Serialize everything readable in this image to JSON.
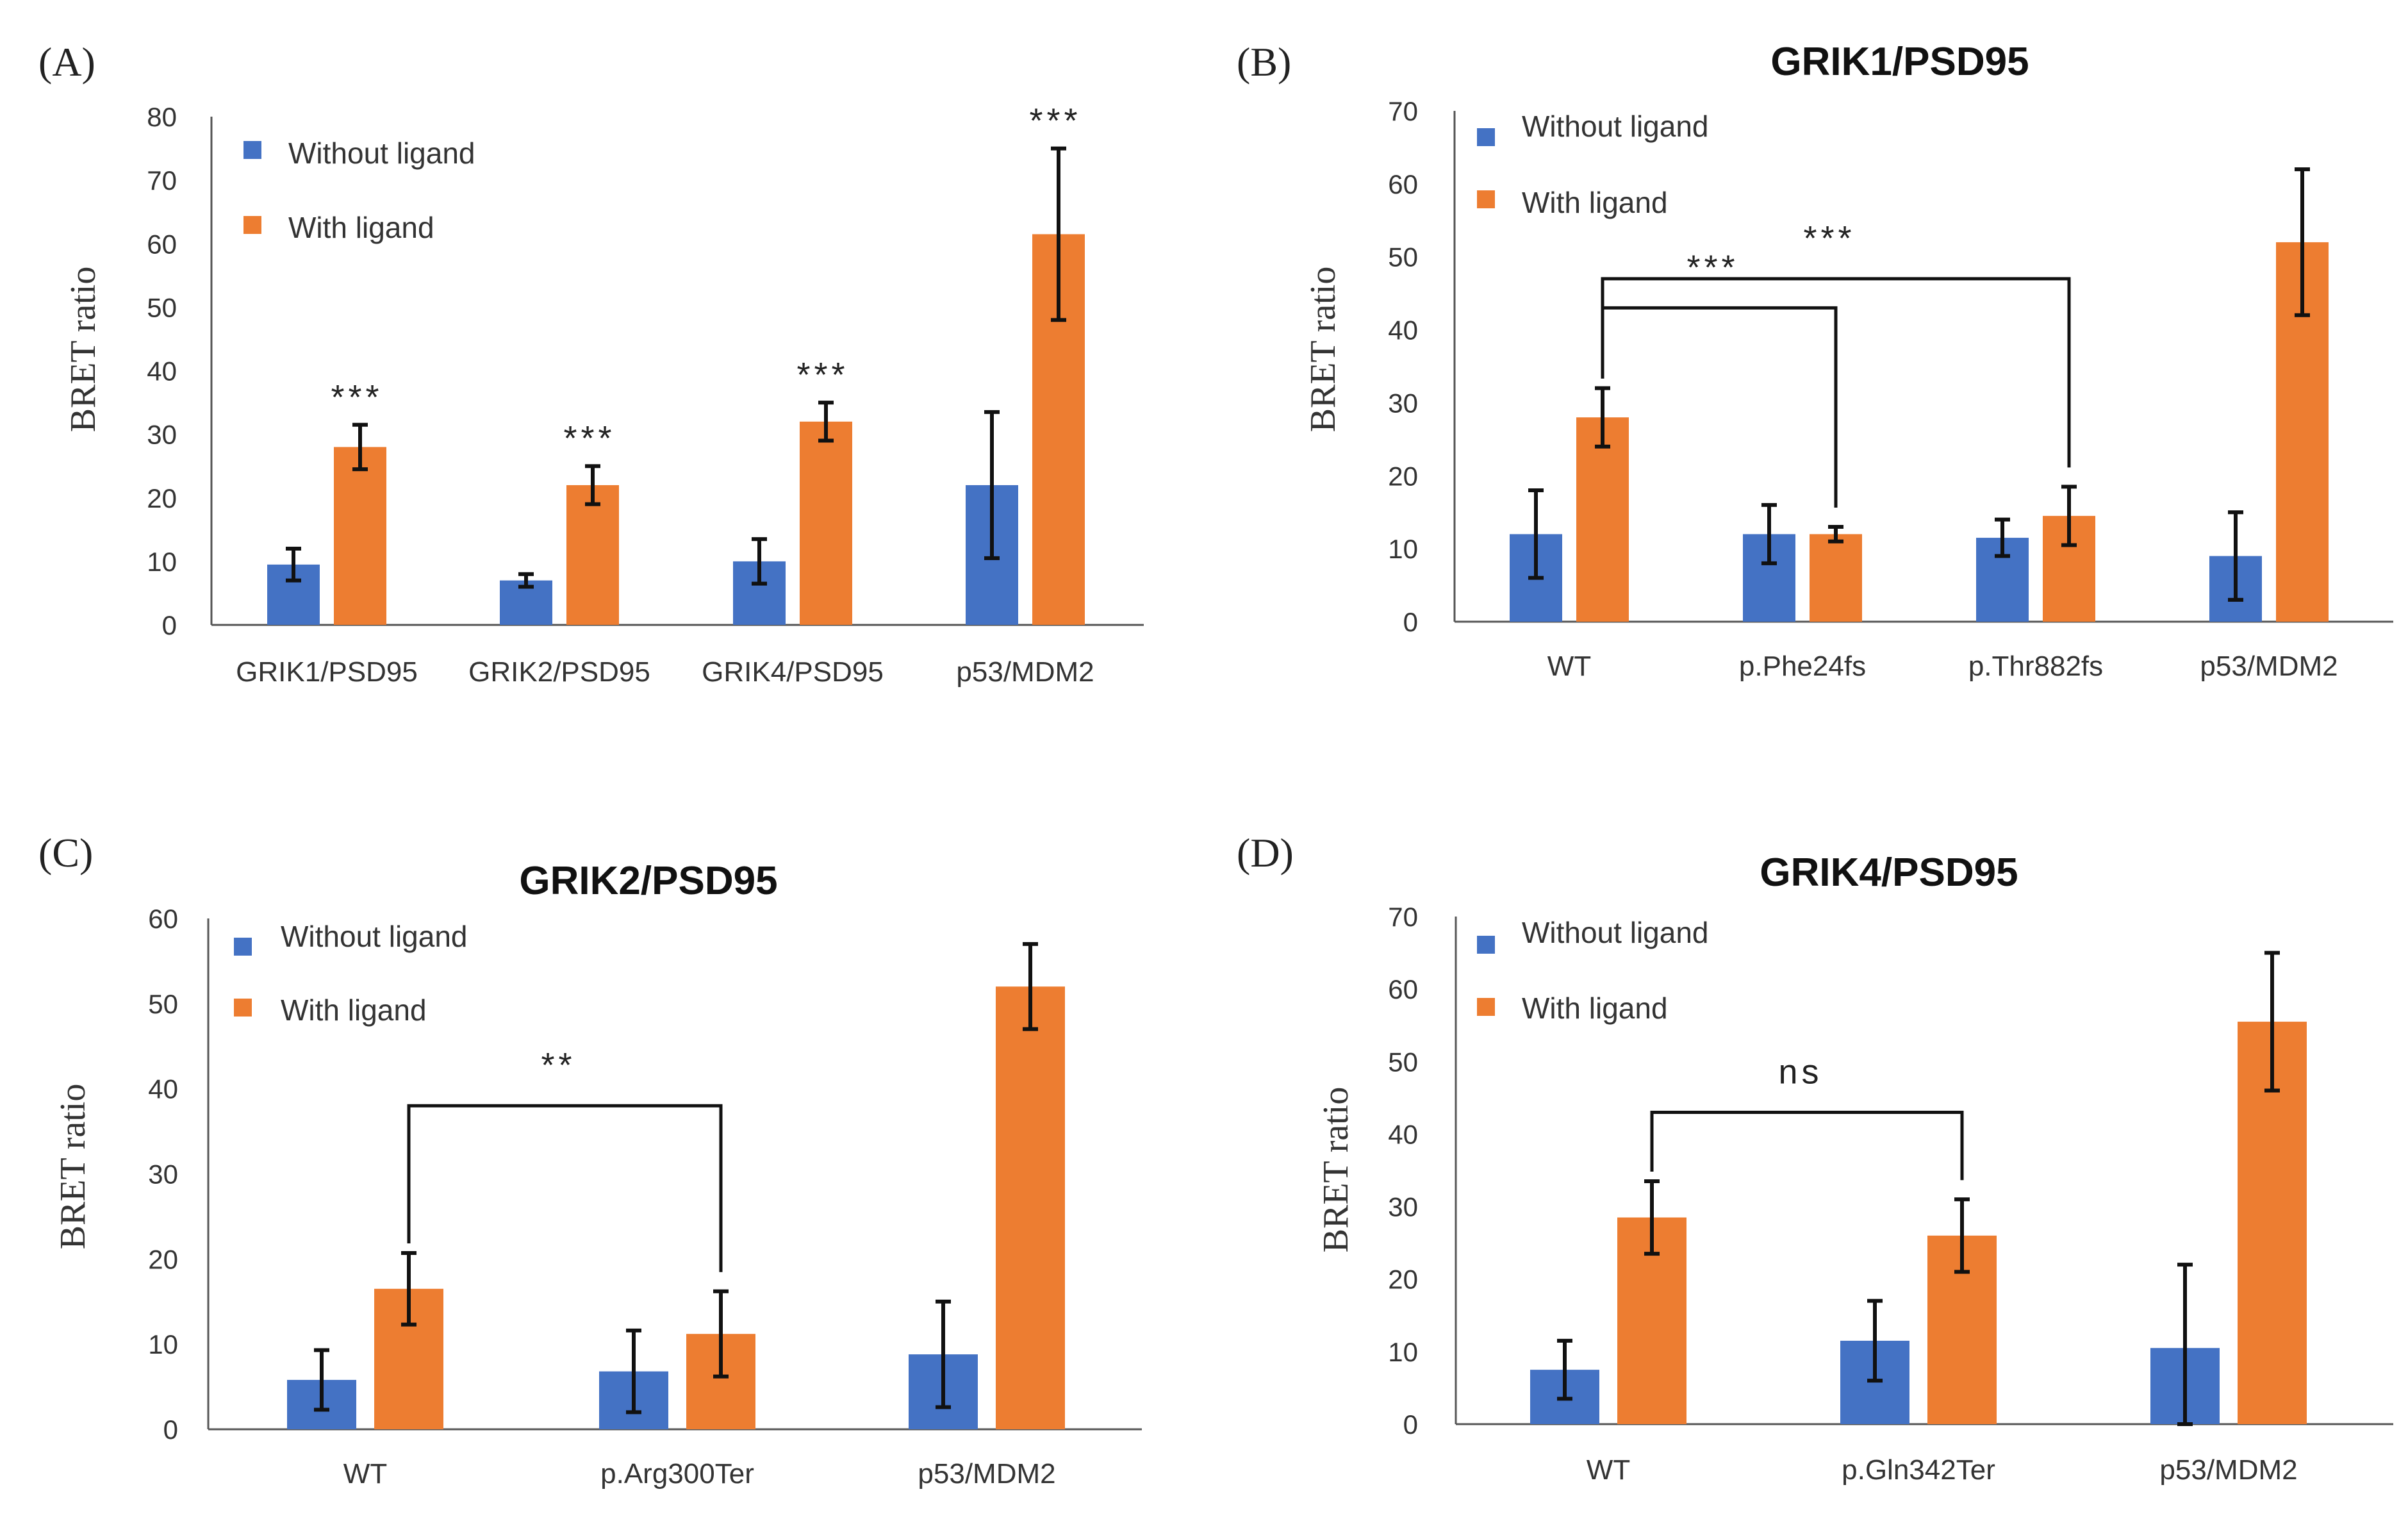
{
  "colors": {
    "without": "#4472C4",
    "with": "#ED7D31"
  },
  "chart_data": [
    {
      "type": "bar",
      "panel": "(A)",
      "title": "",
      "ylabel": "BRET ratio",
      "xlabel": "",
      "ylim": [
        0,
        80
      ],
      "yticks": [
        0,
        10,
        20,
        30,
        40,
        50,
        60,
        70,
        80
      ],
      "categories": [
        "GRIK1/PSD95",
        "GRIK2/PSD95",
        "GRIK4/PSD95",
        "p53/MDM2"
      ],
      "series": [
        {
          "name": "Without ligand",
          "values": [
            9.5,
            7,
            10,
            22
          ],
          "errors": [
            2.5,
            1,
            3.5,
            11.5
          ]
        },
        {
          "name": "With ligand",
          "values": [
            28,
            22,
            32,
            61.5
          ],
          "errors": [
            3.5,
            3,
            3,
            13.5
          ]
        }
      ],
      "legend": "top-left",
      "annotations": [
        {
          "type": "star",
          "text": "***",
          "category": 0
        },
        {
          "type": "star",
          "text": "***",
          "category": 1
        },
        {
          "type": "star",
          "text": "***",
          "category": 2
        },
        {
          "type": "star",
          "text": "***",
          "category": 3
        }
      ]
    },
    {
      "type": "bar",
      "panel": "(B)",
      "title": "GRIK1/PSD95",
      "ylabel": "BRET ratio",
      "xlabel": "",
      "ylim": [
        0,
        70
      ],
      "yticks": [
        0,
        10,
        20,
        30,
        40,
        50,
        60,
        70
      ],
      "categories": [
        "WT",
        "p.Phe24fs",
        "p.Thr882fs",
        "p53/MDM2"
      ],
      "series": [
        {
          "name": "Without ligand",
          "values": [
            12,
            12,
            11.5,
            9
          ],
          "errors": [
            6,
            4,
            2.5,
            6
          ]
        },
        {
          "name": "With ligand",
          "values": [
            28,
            12,
            14.5,
            52
          ],
          "errors": [
            4,
            1,
            4,
            10
          ]
        }
      ],
      "legend": "top-left",
      "annotations": [
        {
          "type": "bracket",
          "text": "***",
          "from": 0,
          "to": 2,
          "level": 47
        },
        {
          "type": "bracket",
          "text": "***",
          "from": 0,
          "to": 1,
          "level": 43
        }
      ]
    },
    {
      "type": "bar",
      "panel": "(C)",
      "title": "GRIK2/PSD95",
      "ylabel": "BRET ratio",
      "xlabel": "",
      "ylim": [
        0,
        60
      ],
      "yticks": [
        0,
        10,
        20,
        30,
        40,
        50,
        60
      ],
      "categories": [
        "WT",
        "p.Arg300Ter",
        "p53/MDM2"
      ],
      "series": [
        {
          "name": "Without ligand",
          "values": [
            5.8,
            6.8,
            8.8
          ],
          "errors": [
            3.5,
            4.8,
            6.2
          ]
        },
        {
          "name": "With ligand",
          "values": [
            16.5,
            11.2,
            52
          ],
          "errors": [
            4.2,
            5,
            5
          ]
        }
      ],
      "legend": "top-left",
      "annotations": [
        {
          "type": "bracket",
          "text": "**",
          "from": 0,
          "to": 1,
          "level": 38
        }
      ]
    },
    {
      "type": "bar",
      "panel": "(D)",
      "title": "GRIK4/PSD95",
      "ylabel": "BRET ratio",
      "xlabel": "",
      "ylim": [
        0,
        70
      ],
      "yticks": [
        0,
        10,
        20,
        30,
        40,
        50,
        60,
        70
      ],
      "categories": [
        "WT",
        "p.Gln342Ter",
        "p53/MDM2"
      ],
      "series": [
        {
          "name": "Without ligand",
          "values": [
            7.5,
            11.5,
            10.5
          ],
          "errors": [
            4,
            5.5,
            11.5
          ]
        },
        {
          "name": "With ligand",
          "values": [
            28.5,
            26,
            55.5
          ],
          "errors": [
            5,
            5,
            9.5
          ]
        }
      ],
      "legend": "top-left",
      "annotations": [
        {
          "type": "bracket",
          "text": "ns",
          "from": 0,
          "to": 1,
          "level": 43
        }
      ]
    }
  ]
}
